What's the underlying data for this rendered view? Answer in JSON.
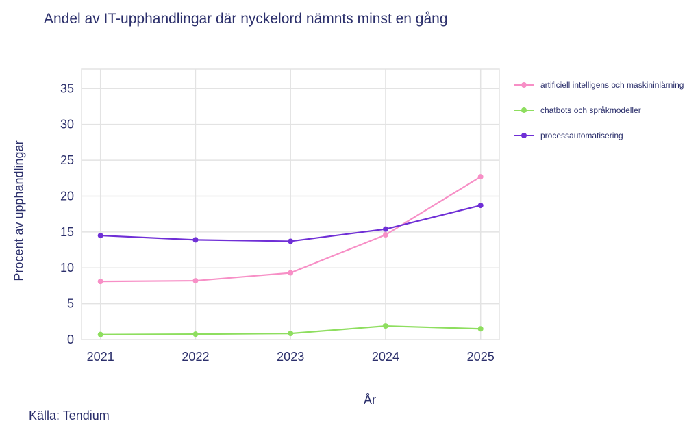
{
  "title": "Andel av IT-upphandlingar där nyckelord nämnts minst en gång",
  "source": "Källa: Tendium",
  "axes": {
    "xlabel": "År",
    "ylabel": "Procent av upphandlingar"
  },
  "legend": [
    {
      "label": "artificiell intelligens och maskininlärning",
      "color": "#f78fc6"
    },
    {
      "label": "chatbots och språkmodeller",
      "color": "#8ede5f"
    },
    {
      "label": "processautomatisering",
      "color": "#6f2fd6"
    }
  ],
  "chart_data": {
    "type": "line",
    "title": "Andel av IT-upphandlingar där nyckelord nämnts minst en gång",
    "xlabel": "År",
    "ylabel": "Procent av upphandlingar",
    "categories": [
      "2021",
      "2022",
      "2023",
      "2024",
      "2025"
    ],
    "series": [
      {
        "name": "artificiell intelligens och maskininlärning",
        "color": "#f78fc6",
        "values": [
          8.1,
          8.2,
          9.3,
          14.6,
          22.7
        ]
      },
      {
        "name": "chatbots och språkmodeller",
        "color": "#8ede5f",
        "values": [
          0.7,
          0.75,
          0.85,
          1.9,
          1.5
        ]
      },
      {
        "name": "processautomatisering",
        "color": "#6f2fd6",
        "values": [
          14.5,
          13.9,
          13.7,
          15.4,
          18.7
        ]
      }
    ],
    "yticks": [
      0,
      5,
      10,
      15,
      20,
      25,
      30,
      35
    ],
    "ylim": [
      0,
      37.7
    ],
    "grid": true,
    "legend_position": "right",
    "annotations": [
      "Källa: Tendium"
    ]
  }
}
